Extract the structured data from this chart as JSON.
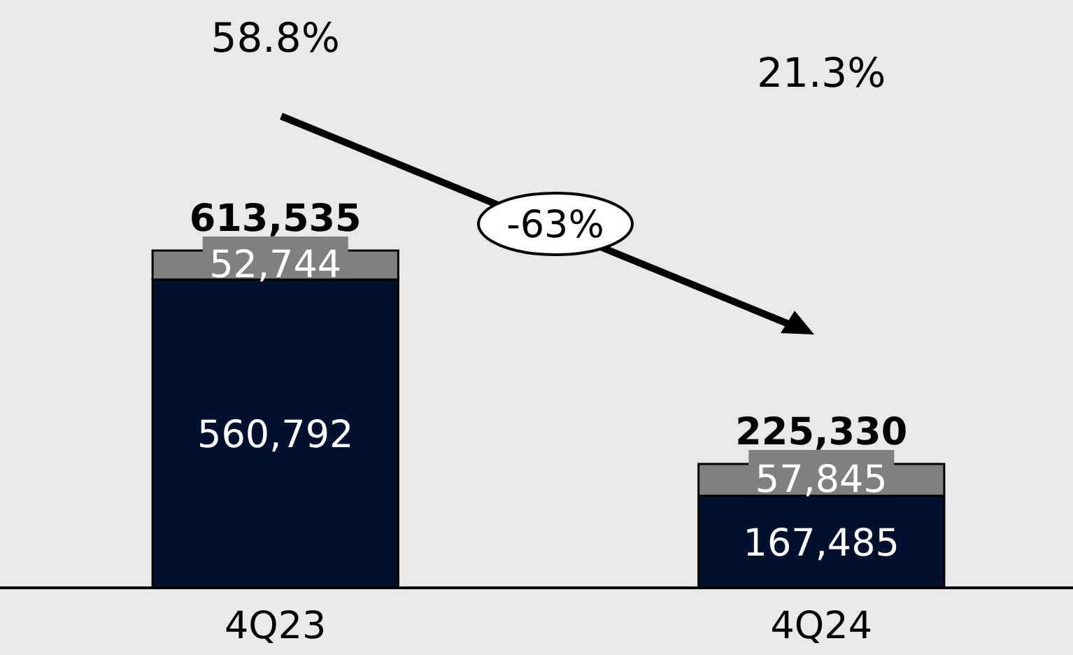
{
  "chart_data": {
    "type": "bar",
    "stacked": true,
    "categories": [
      "4Q23",
      "4Q24"
    ],
    "series": [
      {
        "color": "#00112f",
        "values": [
          560792,
          167485
        ],
        "value_labels": [
          "560,792",
          "167,485"
        ]
      },
      {
        "color": "#808080",
        "values": [
          52744,
          57845
        ],
        "value_labels": [
          "52,744",
          "57,845"
        ]
      }
    ],
    "totals": [
      "613,535",
      "225,330"
    ],
    "annotations": [
      "58.8%",
      "21.3%",
      "-63%"
    ]
  }
}
